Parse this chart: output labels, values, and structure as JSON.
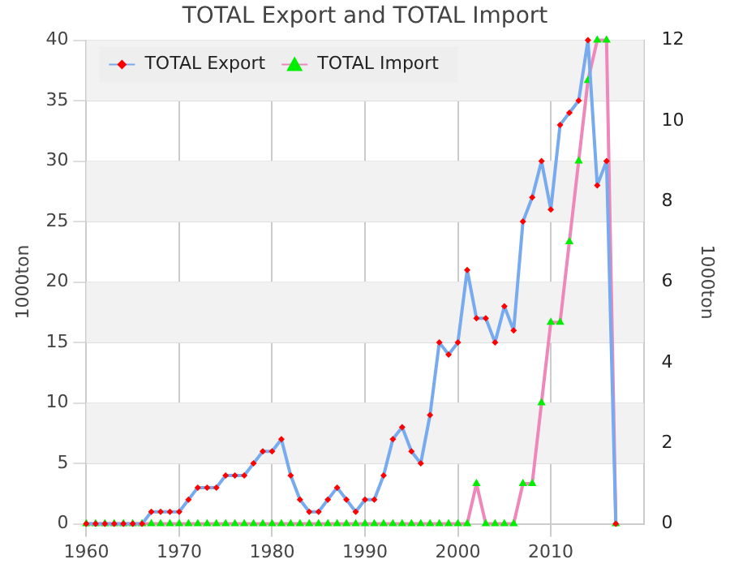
{
  "chart_data": {
    "type": "line",
    "title": "TOTAL Export and TOTAL Import",
    "ylabel": "1000ton",
    "y2label": "1000ton",
    "x": [
      1960,
      1961,
      1962,
      1963,
      1964,
      1965,
      1966,
      1967,
      1968,
      1969,
      1970,
      1971,
      1972,
      1973,
      1974,
      1975,
      1976,
      1977,
      1978,
      1979,
      1980,
      1981,
      1982,
      1983,
      1984,
      1985,
      1986,
      1987,
      1988,
      1989,
      1990,
      1991,
      1992,
      1993,
      1994,
      1995,
      1996,
      1997,
      1998,
      1999,
      2000,
      2001,
      2002,
      2003,
      2004,
      2005,
      2006,
      2007,
      2008,
      2009,
      2010,
      2011,
      2012,
      2013,
      2014,
      2015,
      2016,
      2017
    ],
    "series": [
      {
        "name": "TOTAL Export",
        "color": "#77aaee",
        "marker": "diamond",
        "axis": "y",
        "values": [
          0,
          0,
          0,
          0,
          0,
          0,
          0,
          1,
          1,
          1,
          1,
          2,
          3,
          3,
          3,
          4,
          4,
          4,
          5,
          6,
          6,
          7,
          4,
          2,
          1,
          1,
          2,
          3,
          2,
          1,
          2,
          2,
          4,
          7,
          8,
          6,
          5,
          9,
          15,
          14,
          15,
          21,
          17,
          17,
          15,
          18,
          16,
          25,
          27,
          30,
          26,
          33,
          34,
          35,
          40,
          28,
          30,
          0
        ],
        "colors": [
          "#ff0000",
          "#ff0000",
          "#ff0000",
          "#ff0000",
          "#ff0000",
          "#ff0000",
          "#ff0000",
          "#ff0000",
          "#ff0000",
          "#ff0000",
          "#ff0000",
          "#ff0000",
          "#ff0000",
          "#ff0000",
          "#ff0000",
          "#ff0000",
          "#ff0000",
          "#ff0000",
          "#ff0000",
          "#ff0000",
          "#ff0000",
          "#ff0000",
          "#ff0000",
          "#ff0000",
          "#ff0000",
          "#ff0000",
          "#ff0000",
          "#ff0000",
          "#ff0000",
          "#ff0000",
          "#ff0000",
          "#ff0000",
          "#ff0000",
          "#ff0000",
          "#ff0000",
          "#ff0000",
          "#ff0000",
          "#ff0000",
          "#ff0000",
          "#ff0000",
          "#ff0000",
          "#ff0000",
          "#ff0000",
          "#ff0000",
          "#ff0000",
          "#ff0000",
          "#ff0000",
          "#ff0000",
          "#ff0000",
          "#ff0000",
          "#ff0000",
          "#ff0000",
          "#ff0000",
          "#ff0000",
          "#ff0000",
          "#ff0000",
          "#ff0000",
          "#ff0000"
        ]
      },
      {
        "name": "TOTAL Import",
        "color": "#ee88bb",
        "marker": "triangle",
        "axis": "y2",
        "values": [
          0,
          0,
          0,
          0,
          0,
          0,
          0,
          0,
          0,
          0,
          0,
          0,
          0,
          0,
          0,
          0,
          0,
          0,
          0,
          0,
          0,
          0,
          0,
          0,
          0,
          0,
          0,
          0,
          0,
          0,
          0,
          0,
          0,
          0,
          0,
          0,
          0,
          0,
          0,
          0,
          0,
          0,
          1,
          0,
          0,
          0,
          0,
          1,
          1,
          3,
          5,
          5,
          7,
          9,
          11,
          12,
          12,
          0
        ],
        "colors": [
          "#00ee00",
          "#00ee00",
          "#00ee00",
          "#00ee00",
          "#00ee00",
          "#00ee00",
          "#00ee00",
          "#00ee00",
          "#00ee00",
          "#00ee00",
          "#00ee00",
          "#00ee00",
          "#00ee00",
          "#00ee00",
          "#00ee00",
          "#00ee00",
          "#00ee00",
          "#00ee00",
          "#00ee00",
          "#00ee00",
          "#00ee00",
          "#00ee00",
          "#00ee00",
          "#00ee00",
          "#00ee00",
          "#00ee00",
          "#00ee00",
          "#00ee00",
          "#00ee00",
          "#00ee00",
          "#00ee00",
          "#00ee00",
          "#00ee00",
          "#00ee00",
          "#00ee00",
          "#00ee00",
          "#00ee00",
          "#00ee00",
          "#00ee00",
          "#00ee00",
          "#00ee00",
          "#00ee00",
          "#00ee00",
          "#00ee00",
          "#00ee00",
          "#00ee00",
          "#00ee00",
          "#00ee00",
          "#00ee00",
          "#00ee00",
          "#00ee00",
          "#00ee00",
          "#00ee00",
          "#00ee00",
          "#00ee00",
          "#00ee00",
          "#00ee00",
          "#00ee00"
        ]
      }
    ],
    "xlim": [
      1960,
      2020
    ],
    "xticks": [
      1960,
      1970,
      1980,
      1990,
      2000,
      2010
    ],
    "ylim": [
      0,
      40
    ],
    "yticks": [
      0,
      5,
      10,
      15,
      20,
      25,
      30,
      35,
      40
    ],
    "y2lim": [
      0,
      12
    ],
    "y2ticks": [
      0,
      2,
      4,
      6,
      8,
      10,
      12
    ],
    "grid": true,
    "legend": "top left"
  }
}
